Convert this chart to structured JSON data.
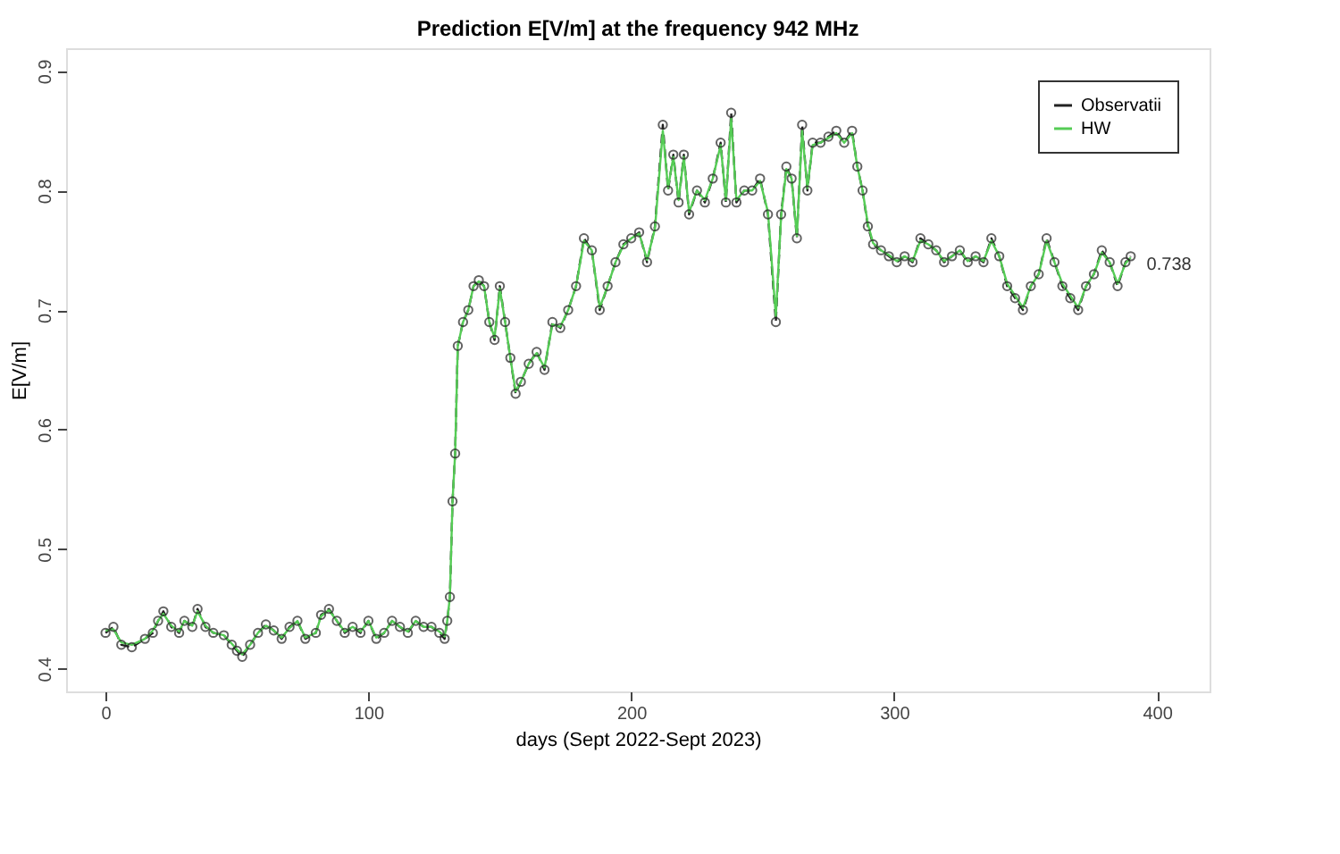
{
  "chart_data": {
    "type": "line",
    "title": "Prediction E[V/m] at the frequency 942 MHz",
    "xlabel": "days (Sept 2022-Sept 2023)",
    "ylabel": "E[V/m]",
    "x": [
      0,
      3,
      6,
      10,
      15,
      18,
      20,
      22,
      25,
      28,
      30,
      33,
      35,
      38,
      41,
      45,
      48,
      50,
      52,
      55,
      58,
      61,
      64,
      67,
      70,
      73,
      76,
      80,
      82,
      85,
      88,
      91,
      94,
      97,
      100,
      103,
      106,
      109,
      112,
      115,
      118,
      121,
      124,
      127,
      129,
      130,
      131,
      132,
      133,
      134,
      136,
      138,
      140,
      142,
      144,
      146,
      148,
      150,
      152,
      154,
      156,
      158,
      161,
      164,
      167,
      170,
      173,
      176,
      179,
      182,
      185,
      188,
      191,
      194,
      197,
      200,
      203,
      206,
      209,
      212,
      214,
      216,
      218,
      220,
      222,
      225,
      228,
      231,
      234,
      236,
      238,
      240,
      243,
      246,
      249,
      252,
      255,
      257,
      259,
      261,
      263,
      265,
      267,
      269,
      272,
      275,
      278,
      281,
      284,
      286,
      288,
      290,
      292,
      295,
      298,
      301,
      304,
      307,
      310,
      313,
      316,
      319,
      322,
      325,
      328,
      331,
      334,
      337,
      340,
      343,
      346,
      349,
      352,
      355,
      358,
      361,
      364,
      367,
      370,
      373,
      376,
      379,
      382,
      385,
      388,
      390
    ],
    "series": [
      {
        "name": "Observatii",
        "color": "#222222",
        "marker": "circle",
        "line_style": "dashed",
        "values": [
          0.43,
          0.435,
          0.42,
          0.418,
          0.425,
          0.43,
          0.44,
          0.448,
          0.435,
          0.43,
          0.44,
          0.435,
          0.45,
          0.435,
          0.43,
          0.428,
          0.42,
          0.415,
          0.41,
          0.42,
          0.43,
          0.437,
          0.432,
          0.425,
          0.435,
          0.44,
          0.425,
          0.43,
          0.445,
          0.45,
          0.44,
          0.43,
          0.435,
          0.43,
          0.44,
          0.425,
          0.43,
          0.44,
          0.435,
          0.43,
          0.44,
          0.435,
          0.435,
          0.43,
          0.425,
          0.44,
          0.46,
          0.54,
          0.58,
          0.67,
          0.69,
          0.7,
          0.72,
          0.725,
          0.72,
          0.69,
          0.675,
          0.72,
          0.69,
          0.66,
          0.63,
          0.64,
          0.655,
          0.665,
          0.65,
          0.69,
          0.685,
          0.7,
          0.72,
          0.76,
          0.75,
          0.7,
          0.72,
          0.74,
          0.755,
          0.76,
          0.765,
          0.74,
          0.77,
          0.855,
          0.8,
          0.83,
          0.79,
          0.83,
          0.78,
          0.8,
          0.79,
          0.81,
          0.84,
          0.79,
          0.865,
          0.79,
          0.8,
          0.8,
          0.81,
          0.78,
          0.69,
          0.78,
          0.82,
          0.81,
          0.76,
          0.855,
          0.8,
          0.84,
          0.84,
          0.845,
          0.85,
          0.84,
          0.85,
          0.82,
          0.8,
          0.77,
          0.755,
          0.75,
          0.745,
          0.74,
          0.745,
          0.74,
          0.76,
          0.755,
          0.75,
          0.74,
          0.745,
          0.75,
          0.74,
          0.745,
          0.74,
          0.76,
          0.745,
          0.72,
          0.71,
          0.7,
          0.72,
          0.73,
          0.76,
          0.74,
          0.72,
          0.71,
          0.7,
          0.72,
          0.73,
          0.75,
          0.74,
          0.72,
          0.74,
          0.745
        ]
      },
      {
        "name": "HW",
        "color": "#55cc55",
        "marker": "none",
        "line_style": "solid",
        "values": [
          0.432,
          0.433,
          0.422,
          0.42,
          0.425,
          0.432,
          0.44,
          0.446,
          0.436,
          0.431,
          0.44,
          0.436,
          0.448,
          0.436,
          0.43,
          0.428,
          0.421,
          0.416,
          0.412,
          0.42,
          0.43,
          0.436,
          0.432,
          0.426,
          0.434,
          0.44,
          0.426,
          0.43,
          0.444,
          0.449,
          0.44,
          0.431,
          0.435,
          0.431,
          0.44,
          0.426,
          0.43,
          0.44,
          0.435,
          0.431,
          0.44,
          0.435,
          0.435,
          0.431,
          0.427,
          0.44,
          0.46,
          0.54,
          0.58,
          0.67,
          0.69,
          0.7,
          0.72,
          0.724,
          0.72,
          0.69,
          0.677,
          0.718,
          0.69,
          0.66,
          0.632,
          0.64,
          0.655,
          0.664,
          0.652,
          0.688,
          0.686,
          0.7,
          0.72,
          0.758,
          0.75,
          0.702,
          0.72,
          0.74,
          0.754,
          0.76,
          0.764,
          0.742,
          0.768,
          0.85,
          0.802,
          0.828,
          0.792,
          0.828,
          0.782,
          0.8,
          0.792,
          0.81,
          0.838,
          0.792,
          0.86,
          0.792,
          0.8,
          0.8,
          0.808,
          0.782,
          0.695,
          0.778,
          0.818,
          0.81,
          0.762,
          0.85,
          0.802,
          0.838,
          0.84,
          0.844,
          0.848,
          0.84,
          0.848,
          0.82,
          0.8,
          0.772,
          0.756,
          0.75,
          0.746,
          0.741,
          0.745,
          0.741,
          0.758,
          0.755,
          0.75,
          0.741,
          0.745,
          0.75,
          0.741,
          0.745,
          0.741,
          0.758,
          0.745,
          0.722,
          0.712,
          0.702,
          0.72,
          0.73,
          0.758,
          0.74,
          0.722,
          0.712,
          0.702,
          0.72,
          0.73,
          0.748,
          0.74,
          0.722,
          0.739,
          0.744
        ]
      }
    ],
    "xlim": [
      -15,
      420
    ],
    "xticks": [
      0,
      100,
      200,
      300,
      400
    ],
    "ylim": [
      0.381,
      0.919
    ],
    "yticks": [
      0.4,
      0.5,
      0.6,
      0.7,
      0.8,
      0.9
    ],
    "grid": false,
    "legend": "top right",
    "annotations": [
      {
        "text": "0.738",
        "x": 392,
        "y": 0.738
      }
    ]
  }
}
